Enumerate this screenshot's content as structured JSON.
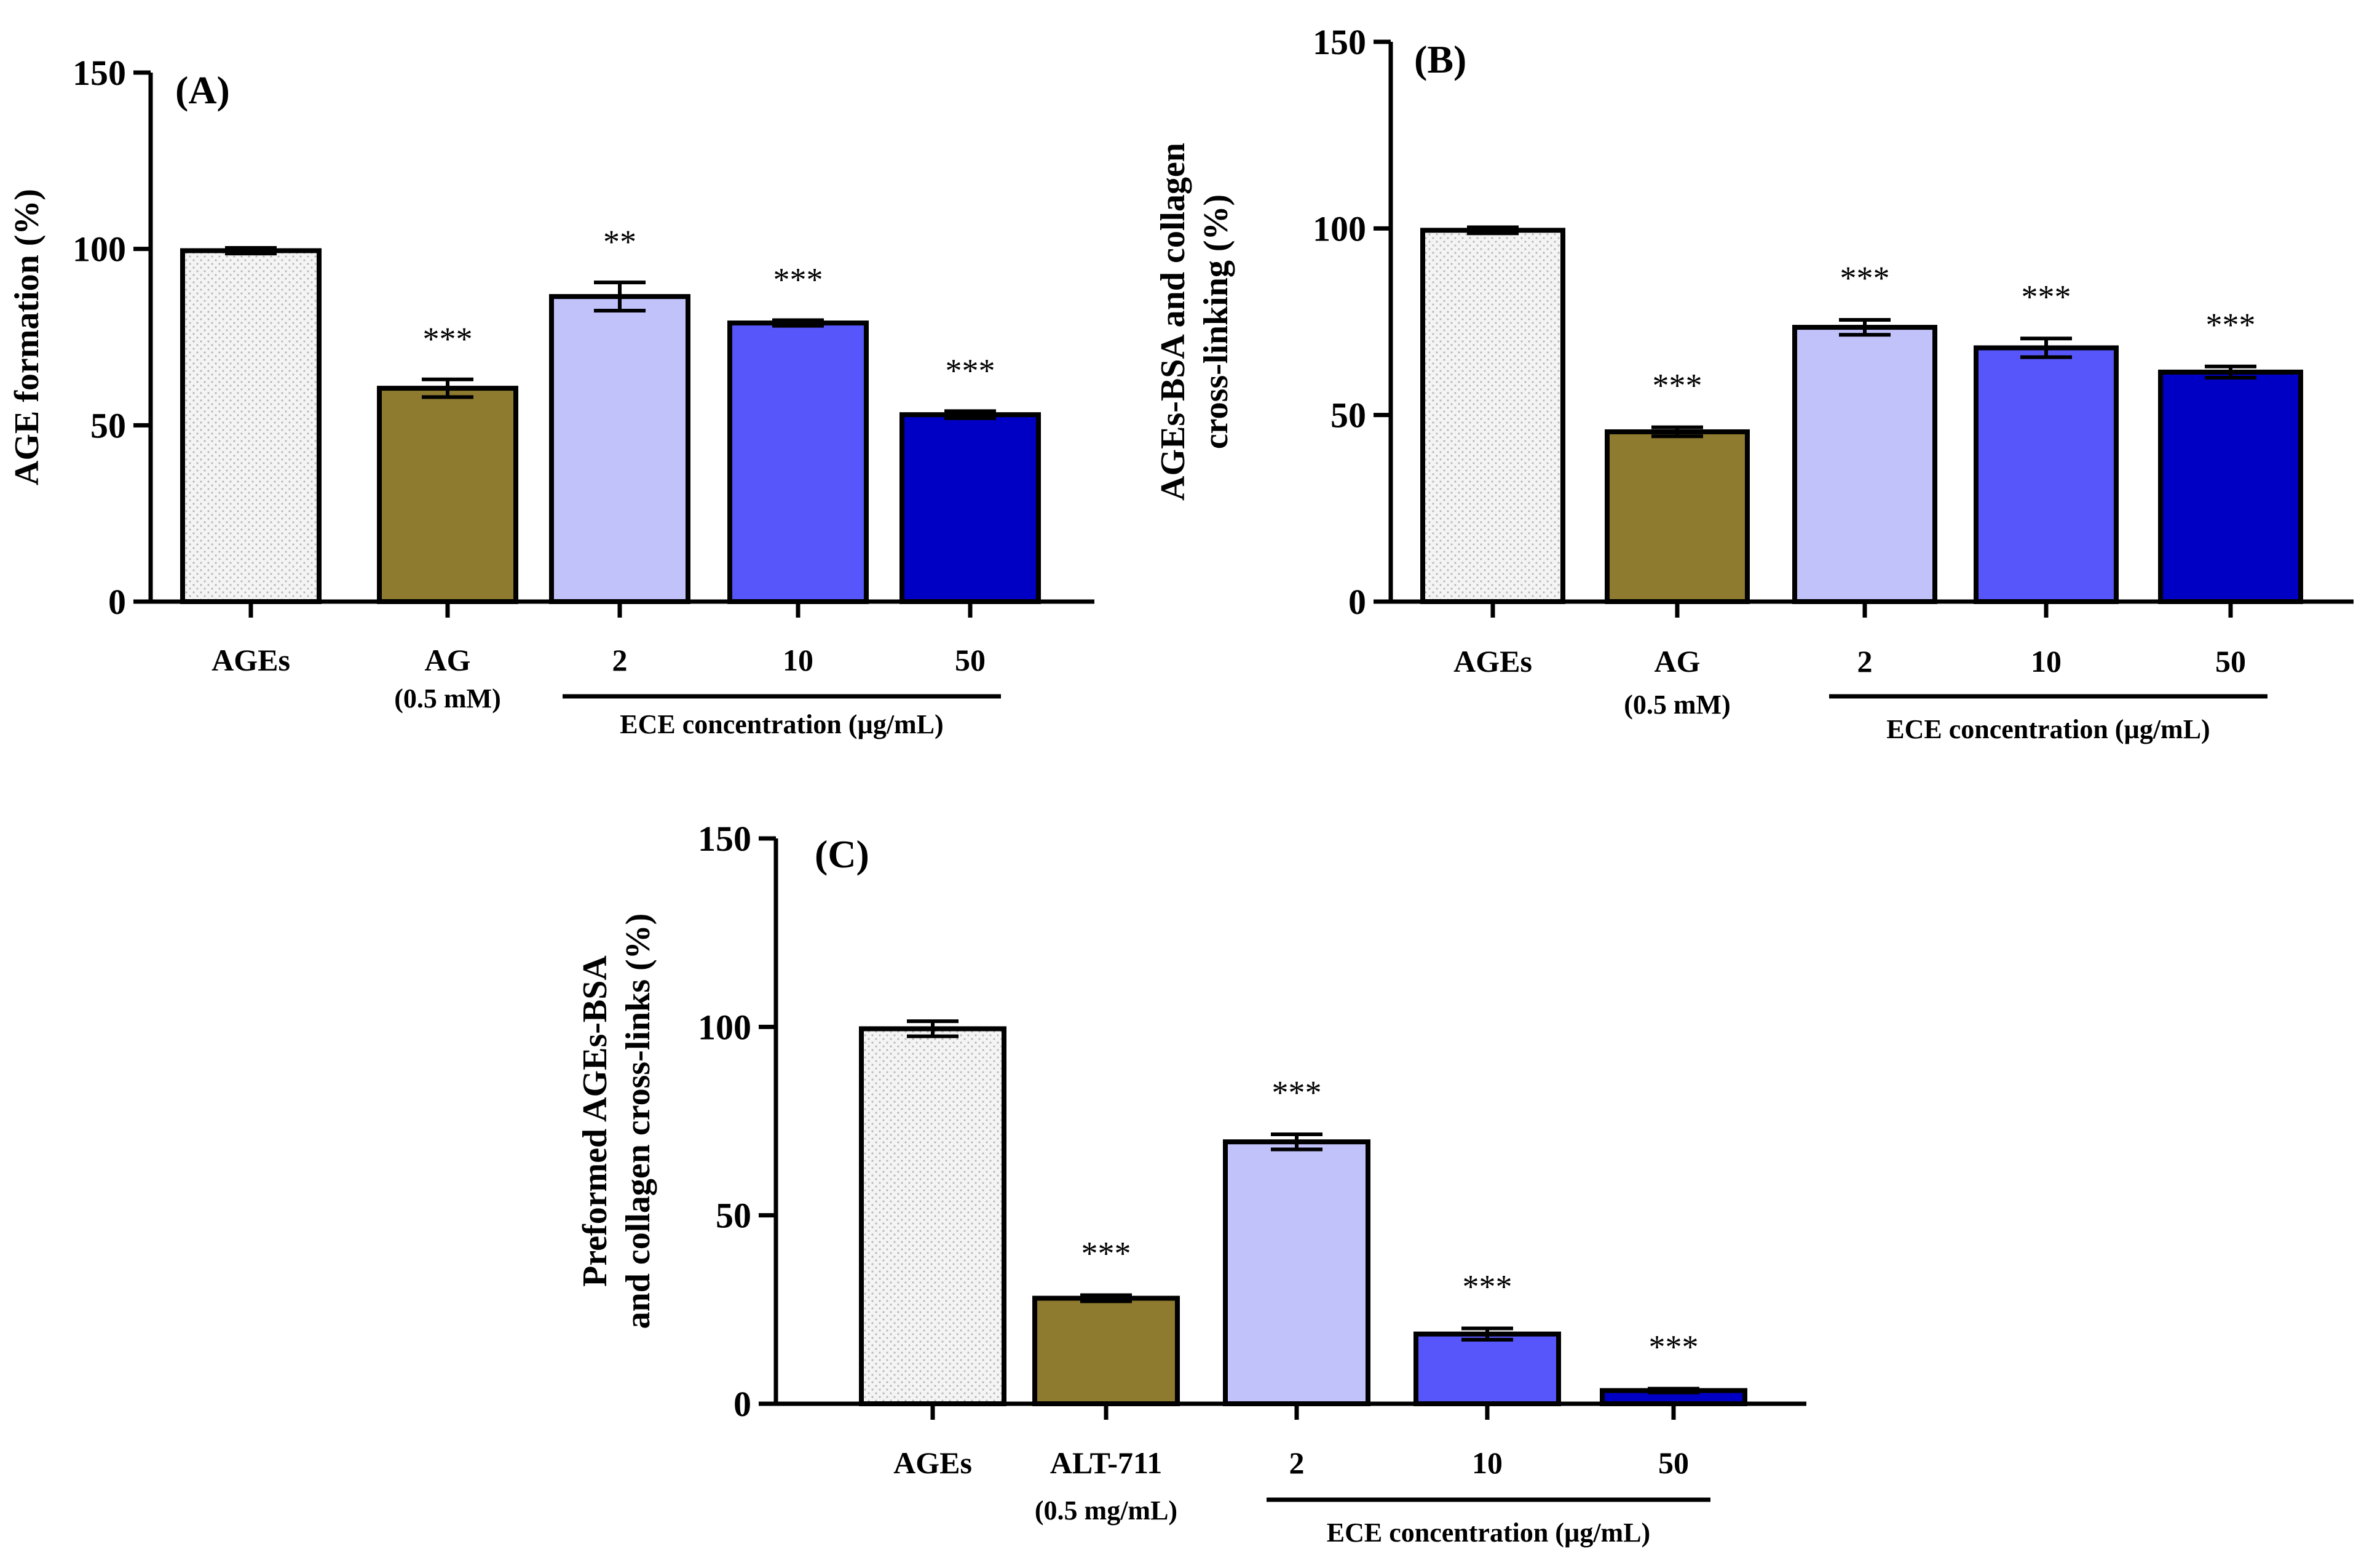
{
  "chart_data": [
    {
      "type": "bar",
      "panel": "(A)",
      "ylabel": "AGE formation  (%)",
      "ylim": [
        0,
        150
      ],
      "yticks": [
        0,
        50,
        100,
        150
      ],
      "categories": [
        "AGEs",
        "AG",
        "2",
        "10",
        "50"
      ],
      "category_sublabels": [
        "",
        "(0.5 mM)",
        "",
        "",
        ""
      ],
      "values": [
        99.5,
        60.5,
        86.5,
        79.0,
        53.0
      ],
      "errors": [
        0.8,
        2.5,
        4.0,
        0.8,
        1.0
      ],
      "significance": [
        "",
        "***",
        "**",
        "***",
        "***"
      ],
      "group_label": "ECE concentration  (µg/mL)",
      "colors": [
        "#f4f4f4",
        "#8e7b2f",
        "#c2c2fb",
        "#5656fb",
        "#0000c4"
      ],
      "legend": "none"
    },
    {
      "type": "bar",
      "panel": "(B)",
      "ylabel_lines": [
        "AGEs-BSA and collagen",
        "cross-linking  (%)"
      ],
      "ylim": [
        0,
        150
      ],
      "yticks": [
        0,
        50,
        100,
        150
      ],
      "categories": [
        "AGEs",
        "AG",
        "2",
        "10",
        "50"
      ],
      "category_sublabels": [
        "",
        "(0.5 mM)",
        "",
        "",
        ""
      ],
      "values": [
        99.5,
        45.5,
        73.5,
        68.0,
        61.5
      ],
      "errors": [
        0.8,
        1.2,
        2.0,
        2.5,
        1.5
      ],
      "significance": [
        "",
        "***",
        "***",
        "***",
        "***"
      ],
      "group_label": "ECE concentration (µg/mL)",
      "colors": [
        "#f4f4f4",
        "#8e7b2f",
        "#c2c2fb",
        "#5656fb",
        "#0000c4"
      ],
      "legend": "none"
    },
    {
      "type": "bar",
      "panel": "(C)",
      "ylabel_lines": [
        "Preformed AGEs-BSA",
        "and collagen cross-links  (%)"
      ],
      "ylim": [
        0,
        150
      ],
      "yticks": [
        0,
        50,
        100,
        150
      ],
      "categories": [
        "AGEs",
        "ALT-711",
        "2",
        "10",
        "50"
      ],
      "category_sublabels": [
        "",
        "(0.5 mg/mL)",
        "",
        "",
        ""
      ],
      "values": [
        99.5,
        28.0,
        69.5,
        18.5,
        3.5
      ],
      "errors": [
        2.0,
        0.8,
        2.0,
        1.5,
        0.5
      ],
      "significance": [
        "",
        "***",
        "***",
        "***",
        "***"
      ],
      "group_label": "ECE concentration (µg/mL)",
      "colors": [
        "#f4f4f4",
        "#8e7b2f",
        "#c2c2fb",
        "#5656fb",
        "#0000c4"
      ],
      "legend": "none"
    }
  ]
}
